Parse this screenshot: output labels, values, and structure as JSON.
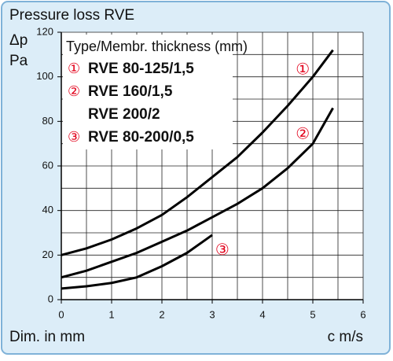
{
  "chart_data": {
    "type": "line",
    "title": "Pressure loss RVE",
    "y_label": "Δp",
    "y_unit": "Pa",
    "x_label": "Dim. in mm",
    "x_unit": "c m/s",
    "legend_title": "Type/Membr. thickness (mm)",
    "xlim": [
      0,
      6
    ],
    "xticks": [
      0,
      1,
      2,
      3,
      4,
      5,
      6
    ],
    "ylim": [
      0,
      120
    ],
    "yticks": [
      0,
      20,
      40,
      60,
      80,
      100,
      120
    ],
    "xgrid": [
      0,
      0.5,
      1,
      1.5,
      2,
      2.5,
      3,
      3.5,
      4,
      4.5,
      5,
      5.5,
      6
    ],
    "ygrid": [
      0,
      10,
      20,
      30,
      40,
      50,
      60,
      70,
      80,
      90,
      100,
      110,
      120
    ],
    "grid": true,
    "series": [
      {
        "marker": "①",
        "names": [
          "RVE 80-125/1,5"
        ],
        "color": "#000000",
        "marker_color": "#e2001a",
        "x": [
          0,
          0.5,
          1,
          1.5,
          2,
          2.5,
          3,
          3.5,
          4,
          4.5,
          5,
          5.4
        ],
        "values": [
          20,
          23,
          27,
          32,
          38,
          46,
          55,
          64,
          75,
          87,
          100,
          112
        ]
      },
      {
        "marker": "②",
        "names": [
          "RVE 160/1,5",
          "RVE 200/2"
        ],
        "color": "#000000",
        "marker_color": "#e2001a",
        "x": [
          0,
          0.5,
          1,
          1.5,
          2,
          2.5,
          3,
          3.5,
          4,
          4.5,
          5,
          5.4
        ],
        "values": [
          10,
          13,
          17,
          21,
          26,
          31,
          37,
          43,
          50,
          59,
          70,
          86
        ]
      },
      {
        "marker": "③",
        "names": [
          "RVE 80-200/0,5"
        ],
        "color": "#000000",
        "marker_color": "#e2001a",
        "x": [
          0,
          0.5,
          1,
          1.5,
          2,
          2.5,
          3
        ],
        "values": [
          5,
          6,
          7.5,
          10,
          15,
          21,
          29
        ]
      }
    ]
  }
}
